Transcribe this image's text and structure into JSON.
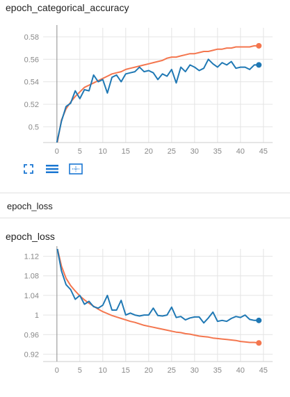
{
  "acc_card": {
    "title": "epoch_categorical_accuracy"
  },
  "loss_section": {
    "header": "epoch_loss"
  },
  "loss_card": {
    "title": "epoch_loss"
  },
  "toolbar": {
    "icons": [
      "expand-icon",
      "data-series-icon",
      "fit-domain-icon"
    ]
  },
  "colors": {
    "train": "#f4764e",
    "validation": "#1f78b4",
    "grid": "#e4e4e4",
    "axis": "#9e9e9e",
    "tick": "#888888"
  },
  "chart_data": [
    {
      "type": "line",
      "title": "epoch_categorical_accuracy",
      "x_ticks": [
        0,
        5,
        10,
        15,
        20,
        25,
        30,
        35,
        40,
        45
      ],
      "y_ticks": [
        0.5,
        0.52,
        0.54,
        0.56,
        0.58
      ],
      "y_tick_labels": [
        "0.5",
        "0.52",
        "0.54",
        "0.56",
        "0.58"
      ],
      "xlim": [
        -3,
        47
      ],
      "ylim": [
        0.486,
        0.588
      ],
      "grid": true,
      "series": [
        {
          "color": "#f4764e",
          "x": [
            0,
            1,
            2,
            3,
            4,
            5,
            6,
            7,
            8,
            9,
            10,
            11,
            12,
            13,
            14,
            15,
            16,
            17,
            18,
            19,
            20,
            21,
            22,
            23,
            24,
            25,
            26,
            27,
            28,
            29,
            30,
            31,
            32,
            33,
            34,
            35,
            36,
            37,
            38,
            39,
            40,
            41,
            42,
            43,
            44
          ],
          "y": [
            0.484,
            0.506,
            0.516,
            0.522,
            0.527,
            0.531,
            0.535,
            0.537,
            0.539,
            0.541,
            0.543,
            0.545,
            0.547,
            0.548,
            0.549,
            0.551,
            0.552,
            0.553,
            0.554,
            0.555,
            0.556,
            0.557,
            0.558,
            0.559,
            0.561,
            0.562,
            0.562,
            0.563,
            0.564,
            0.565,
            0.565,
            0.566,
            0.567,
            0.567,
            0.568,
            0.569,
            0.569,
            0.57,
            0.57,
            0.571,
            0.571,
            0.571,
            0.571,
            0.572,
            0.572
          ]
        },
        {
          "color": "#1f78b4",
          "x": [
            0,
            1,
            2,
            3,
            4,
            5,
            6,
            7,
            8,
            9,
            10,
            11,
            12,
            13,
            14,
            15,
            16,
            17,
            18,
            19,
            20,
            21,
            22,
            23,
            24,
            25,
            26,
            27,
            28,
            29,
            30,
            31,
            32,
            33,
            34,
            35,
            36,
            37,
            38,
            39,
            40,
            41,
            42,
            43,
            44
          ],
          "y": [
            0.486,
            0.505,
            0.518,
            0.521,
            0.532,
            0.525,
            0.533,
            0.532,
            0.546,
            0.54,
            0.542,
            0.53,
            0.544,
            0.546,
            0.54,
            0.547,
            0.548,
            0.549,
            0.553,
            0.549,
            0.55,
            0.548,
            0.542,
            0.547,
            0.545,
            0.551,
            0.539,
            0.553,
            0.549,
            0.555,
            0.553,
            0.55,
            0.552,
            0.56,
            0.556,
            0.553,
            0.557,
            0.555,
            0.558,
            0.552,
            0.553,
            0.553,
            0.551,
            0.555,
            0.555
          ]
        }
      ]
    },
    {
      "type": "line",
      "title": "epoch_loss",
      "x_ticks": [
        0,
        5,
        10,
        15,
        20,
        25,
        30,
        35,
        40,
        45
      ],
      "y_ticks": [
        0.92,
        0.96,
        1,
        1.04,
        1.08,
        1.12
      ],
      "y_tick_labels": [
        "0.92",
        "0.96",
        "1",
        "1.04",
        "1.08",
        "1.12"
      ],
      "xlim": [
        -3,
        47
      ],
      "ylim": [
        0.905,
        1.135
      ],
      "grid": true,
      "series": [
        {
          "color": "#f4764e",
          "x": [
            0,
            1,
            2,
            3,
            4,
            5,
            6,
            7,
            8,
            9,
            10,
            11,
            12,
            13,
            14,
            15,
            16,
            17,
            18,
            19,
            20,
            21,
            22,
            23,
            24,
            25,
            26,
            27,
            28,
            29,
            30,
            31,
            32,
            33,
            34,
            35,
            36,
            37,
            38,
            39,
            40,
            41,
            42,
            43,
            44
          ],
          "y": [
            1.14,
            1.1,
            1.075,
            1.06,
            1.049,
            1.039,
            1.031,
            1.024,
            1.018,
            1.012,
            1.007,
            1.003,
            0.999,
            0.996,
            0.993,
            0.99,
            0.987,
            0.985,
            0.982,
            0.979,
            0.977,
            0.975,
            0.973,
            0.971,
            0.969,
            0.967,
            0.965,
            0.964,
            0.962,
            0.961,
            0.959,
            0.957,
            0.956,
            0.955,
            0.953,
            0.952,
            0.951,
            0.95,
            0.949,
            0.948,
            0.946,
            0.945,
            0.944,
            0.944,
            0.943
          ]
        },
        {
          "color": "#1f78b4",
          "x": [
            0,
            1,
            2,
            3,
            4,
            5,
            6,
            7,
            8,
            9,
            10,
            11,
            12,
            13,
            14,
            15,
            16,
            17,
            18,
            19,
            20,
            21,
            22,
            23,
            24,
            25,
            26,
            27,
            28,
            29,
            30,
            31,
            32,
            33,
            34,
            35,
            36,
            37,
            38,
            39,
            40,
            41,
            42,
            43,
            44
          ],
          "y": [
            1.14,
            1.09,
            1.062,
            1.052,
            1.032,
            1.04,
            1.022,
            1.028,
            1.017,
            1.014,
            1.02,
            1.04,
            1.01,
            1.01,
            1.03,
            1.0,
            1.004,
            1.0,
            0.998,
            1.0,
            1.0,
            1.014,
            0.999,
            0.998,
            1.0,
            1.016,
            0.995,
            0.997,
            0.99,
            0.994,
            0.996,
            0.996,
            0.984,
            0.994,
            1.006,
            0.987,
            0.989,
            0.987,
            0.993,
            0.997,
            0.995,
            1.0,
            0.991,
            0.989,
            0.989
          ]
        }
      ]
    }
  ]
}
